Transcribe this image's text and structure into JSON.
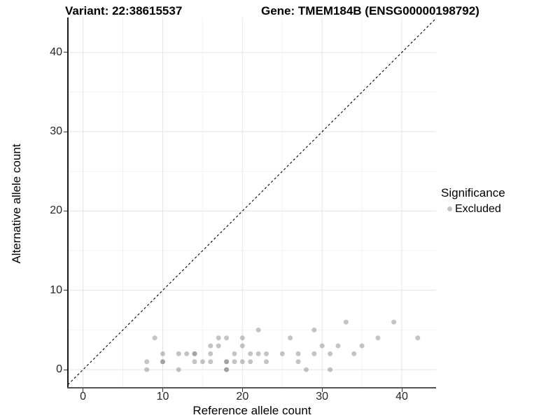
{
  "header": {
    "variant_title": "Variant: 22:38615537",
    "gene_title": "Gene: TMEM184B (ENSG00000198792)"
  },
  "chart_data": {
    "type": "scatter",
    "xlabel": "Reference allele count",
    "ylabel": "Alternative allele count",
    "xlim": [
      -1.9,
      44.3
    ],
    "ylim": [
      -2.2,
      44.4
    ],
    "x_ticks": [
      0,
      10,
      20,
      30,
      40
    ],
    "y_ticks": [
      0,
      10,
      20,
      30,
      40
    ],
    "x_minor_ticks": [
      5,
      15,
      25,
      35
    ],
    "y_minor_ticks": [
      5,
      15,
      25,
      35
    ],
    "grid": "major+minor",
    "identity_line": {
      "style": "dashed",
      "slope": 1,
      "intercept": 0,
      "color": "#000000"
    },
    "legend": {
      "title": "Significance",
      "position": "right",
      "items": [
        {
          "label": "Excluded",
          "color": "#7d7d7d",
          "opacity": 0.45
        }
      ]
    },
    "series": [
      {
        "name": "Excluded",
        "marker": "circle",
        "marker_radius_px": 3.5,
        "color": "#7d7d7d",
        "opacity": 0.45,
        "points": [
          [
            8,
            0
          ],
          [
            12,
            0
          ],
          [
            18,
            0
          ],
          [
            18,
            0
          ],
          [
            28,
            0
          ],
          [
            31,
            0
          ],
          [
            8,
            1
          ],
          [
            10,
            1
          ],
          [
            10,
            1
          ],
          [
            14,
            1
          ],
          [
            15,
            1
          ],
          [
            16,
            1
          ],
          [
            18,
            1
          ],
          [
            18,
            1
          ],
          [
            19,
            1
          ],
          [
            20,
            1
          ],
          [
            21,
            1
          ],
          [
            23,
            1
          ],
          [
            27,
            1
          ],
          [
            10,
            2
          ],
          [
            12,
            2
          ],
          [
            13,
            2
          ],
          [
            14,
            2
          ],
          [
            14,
            2
          ],
          [
            16,
            2
          ],
          [
            19,
            2
          ],
          [
            21,
            2
          ],
          [
            22,
            2
          ],
          [
            23,
            2
          ],
          [
            25,
            2
          ],
          [
            27,
            2
          ],
          [
            29,
            2
          ],
          [
            31,
            2
          ],
          [
            34,
            2
          ],
          [
            16,
            3
          ],
          [
            17,
            3
          ],
          [
            20,
            3
          ],
          [
            30,
            3
          ],
          [
            32,
            3
          ],
          [
            35,
            3
          ],
          [
            9,
            4
          ],
          [
            17,
            4
          ],
          [
            18,
            4
          ],
          [
            20,
            4
          ],
          [
            26,
            4
          ],
          [
            37,
            4
          ],
          [
            42,
            4
          ],
          [
            22,
            5
          ],
          [
            29,
            5
          ],
          [
            33,
            6
          ],
          [
            39,
            6
          ]
        ]
      }
    ],
    "colors": {
      "background": "#ffffff",
      "grid_major": "#e4e4e4",
      "grid_minor": "#f2f2f2",
      "axis_line_x": "#555555",
      "axis_line_y": "#1a1a1a",
      "tick_text": "#262626"
    }
  }
}
